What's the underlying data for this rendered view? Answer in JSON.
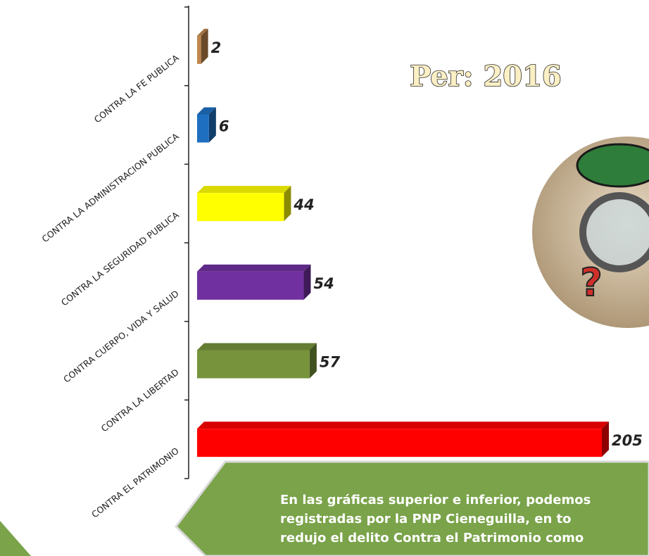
{
  "chart_data": {
    "type": "bar",
    "orientation": "horizontal",
    "title": "Per: 2016",
    "categories": [
      "CONTRA LA FE PUBLICA",
      "CONTRA LA ADMINISTRACION PUBLICA",
      "CONTRA LA SEGURIDAD PUBLICA",
      "CONTRA CUERPO, VIDA Y SALUD",
      "CONTRA LA LIBERTAD",
      "CONTRA EL PATRIMONIO"
    ],
    "series": [
      {
        "colors": [
          "#c0864e",
          "#1f6fc0",
          "#ffff00",
          "#7030a0",
          "#77933c",
          "#ff0000"
        ],
        "values": [
          2,
          6,
          44,
          54,
          57,
          205
        ]
      }
    ]
  },
  "note": {
    "lines": [
      "En las gráficas superior e inferior, podemos",
      "registradas por la PNP Cieneguilla, en to",
      "redujo el delito Contra el Patrimonio como"
    ]
  }
}
